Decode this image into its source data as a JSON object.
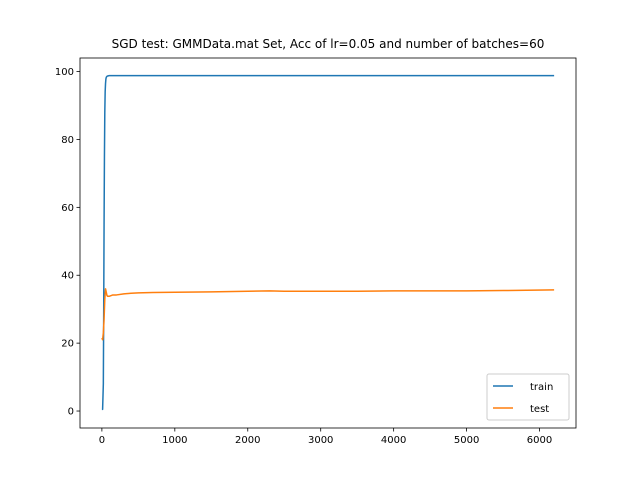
{
  "chart_data": {
    "type": "line",
    "title": "SGD test: GMMData.mat Set, Acc of lr=0.05 and number of batches=60",
    "xlabel": "",
    "ylabel": "",
    "xlim": [
      -300,
      6500
    ],
    "ylim": [
      -5,
      104
    ],
    "xticks": [
      0,
      1000,
      2000,
      3000,
      4000,
      5000,
      6000
    ],
    "yticks": [
      0,
      20,
      40,
      60,
      80,
      100
    ],
    "grid": false,
    "legend_position": "lower right",
    "series": [
      {
        "name": "train",
        "color": "#1f77b4",
        "x": [
          0,
          10,
          20,
          25,
          30,
          35,
          40,
          45,
          50,
          55,
          60,
          70,
          80,
          100,
          150,
          300,
          1000,
          2000,
          3000,
          4000,
          5000,
          6200
        ],
        "y": [
          0.5,
          0.5,
          8,
          30,
          55,
          75,
          88,
          94,
          96.5,
          97.8,
          98.3,
          98.6,
          98.7,
          98.8,
          98.8,
          98.8,
          98.8,
          98.8,
          98.8,
          98.8,
          98.8,
          98.8
        ]
      },
      {
        "name": "test",
        "color": "#ff7f0e",
        "x": [
          0,
          10,
          20,
          30,
          40,
          50,
          60,
          70,
          80,
          100,
          150,
          200,
          300,
          400,
          500,
          700,
          1000,
          1500,
          2000,
          2300,
          2500,
          3000,
          3500,
          4000,
          4500,
          5000,
          5500,
          6200
        ],
        "y": [
          21.5,
          21,
          23,
          27,
          33,
          36,
          35,
          34,
          33.8,
          33.8,
          34.2,
          34.2,
          34.5,
          34.7,
          34.8,
          34.9,
          35.0,
          35.1,
          35.3,
          35.4,
          35.3,
          35.3,
          35.3,
          35.4,
          35.4,
          35.4,
          35.5,
          35.7
        ]
      }
    ]
  }
}
